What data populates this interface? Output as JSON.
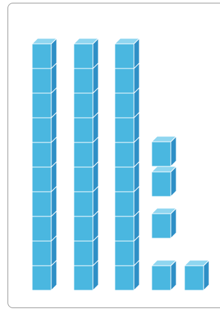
{
  "colors": {
    "cube_front": "#4ab7e0",
    "cube_side": "#2e8fc6",
    "cube_top": "#8fd6f0",
    "cube_edge": "#ffffff",
    "frame_border": "#9a9a9a"
  },
  "base_ten_blocks": {
    "rods": 3,
    "units_per_rod": 10,
    "unit_cubes": 5,
    "total": 35
  }
}
